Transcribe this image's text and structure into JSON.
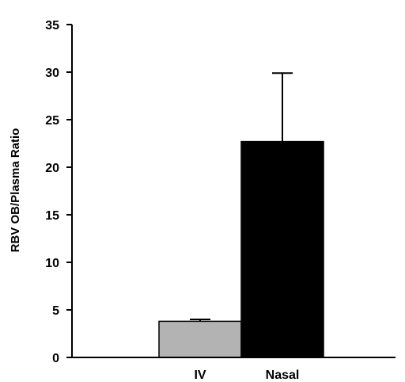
{
  "chart_data": {
    "type": "bar",
    "title": "",
    "xlabel": "",
    "ylabel": "RBV OB/Plasma Ratio",
    "categories": [
      "IV",
      "Nasal"
    ],
    "values": [
      3.8,
      22.7
    ],
    "error_upper": [
      4.0,
      29.9
    ],
    "bar_colors": [
      "#b3b3b3",
      "#000000"
    ],
    "ylim": [
      0,
      35
    ],
    "yticks": [
      0,
      5,
      10,
      15,
      20,
      25,
      30,
      35
    ],
    "grid": false,
    "legend": "none"
  }
}
